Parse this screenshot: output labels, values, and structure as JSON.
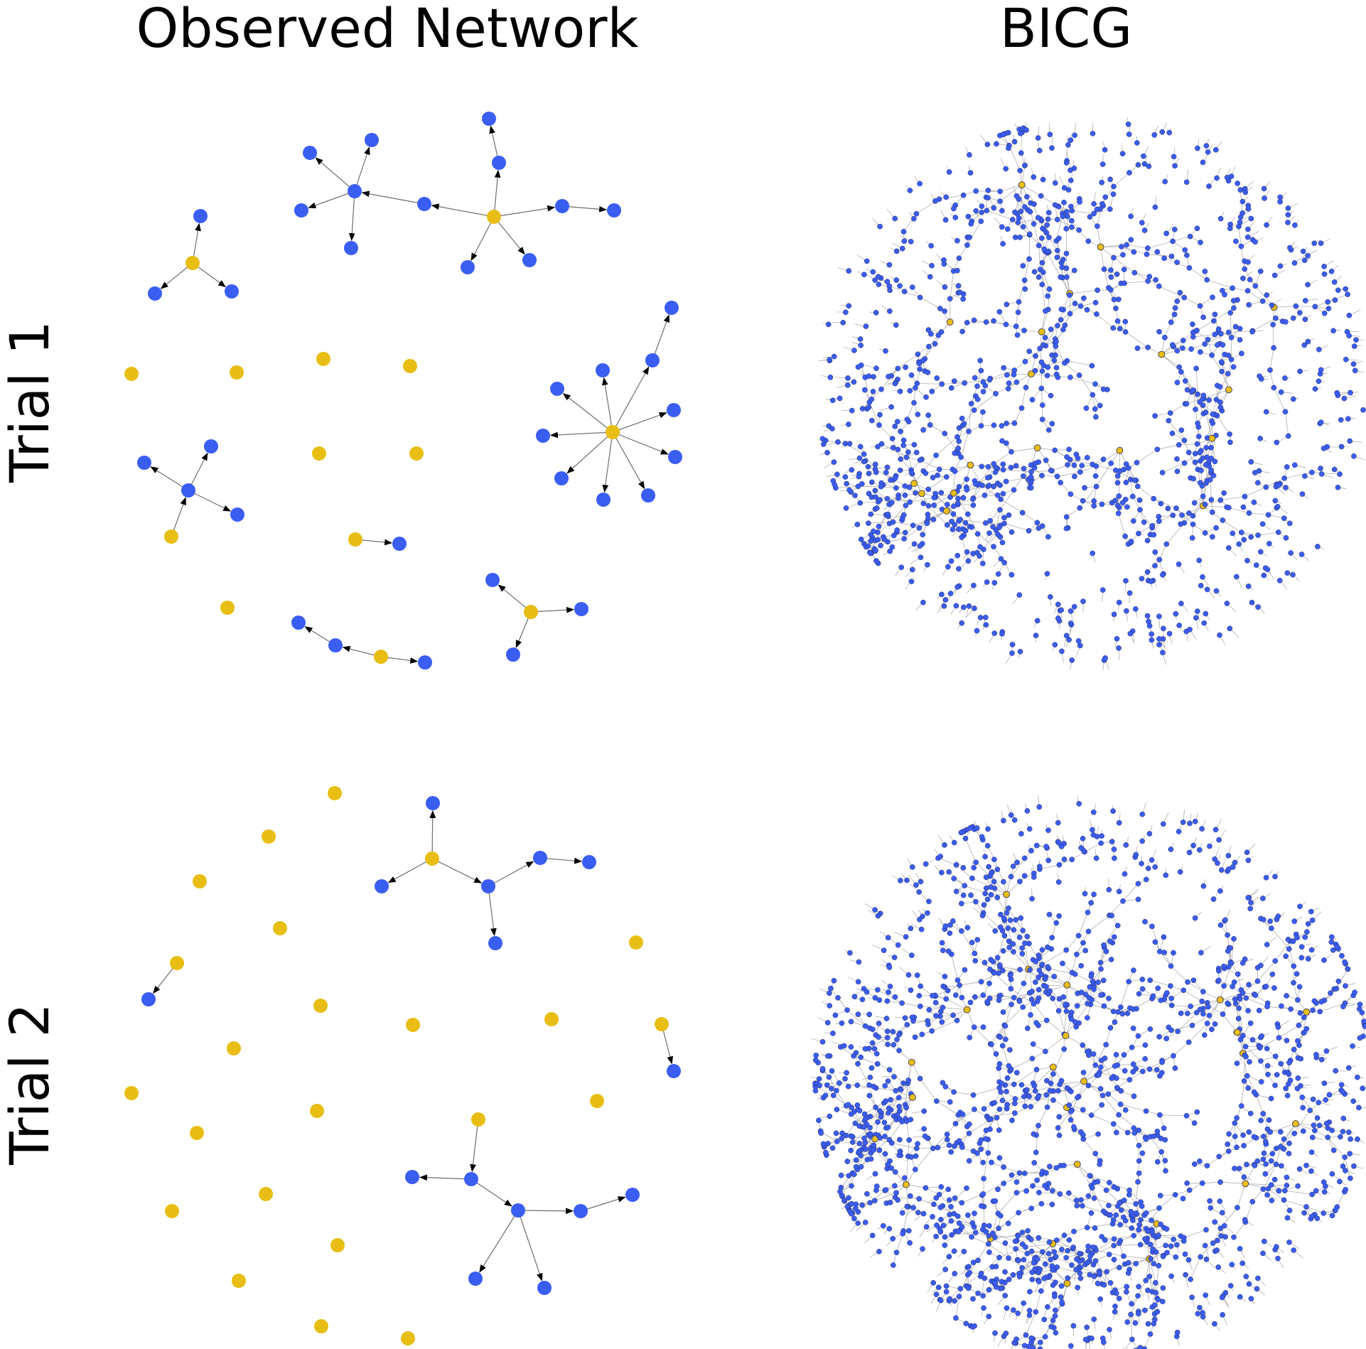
{
  "labels": {
    "observed_network": "Observed Network",
    "bicg": "BICG",
    "trial_1": "Trial 1",
    "trial_2": "Trial 2"
  },
  "colors": {
    "seed_node": "#E8BE14",
    "infected_node": "#3A5DF2",
    "edge": "#6e6e6e",
    "bicg_edge": "#b0b0b0",
    "background": "#ffffff"
  },
  "node_types": [
    "seed",
    "infected"
  ],
  "bicg_node_total_estimate": 1500
}
